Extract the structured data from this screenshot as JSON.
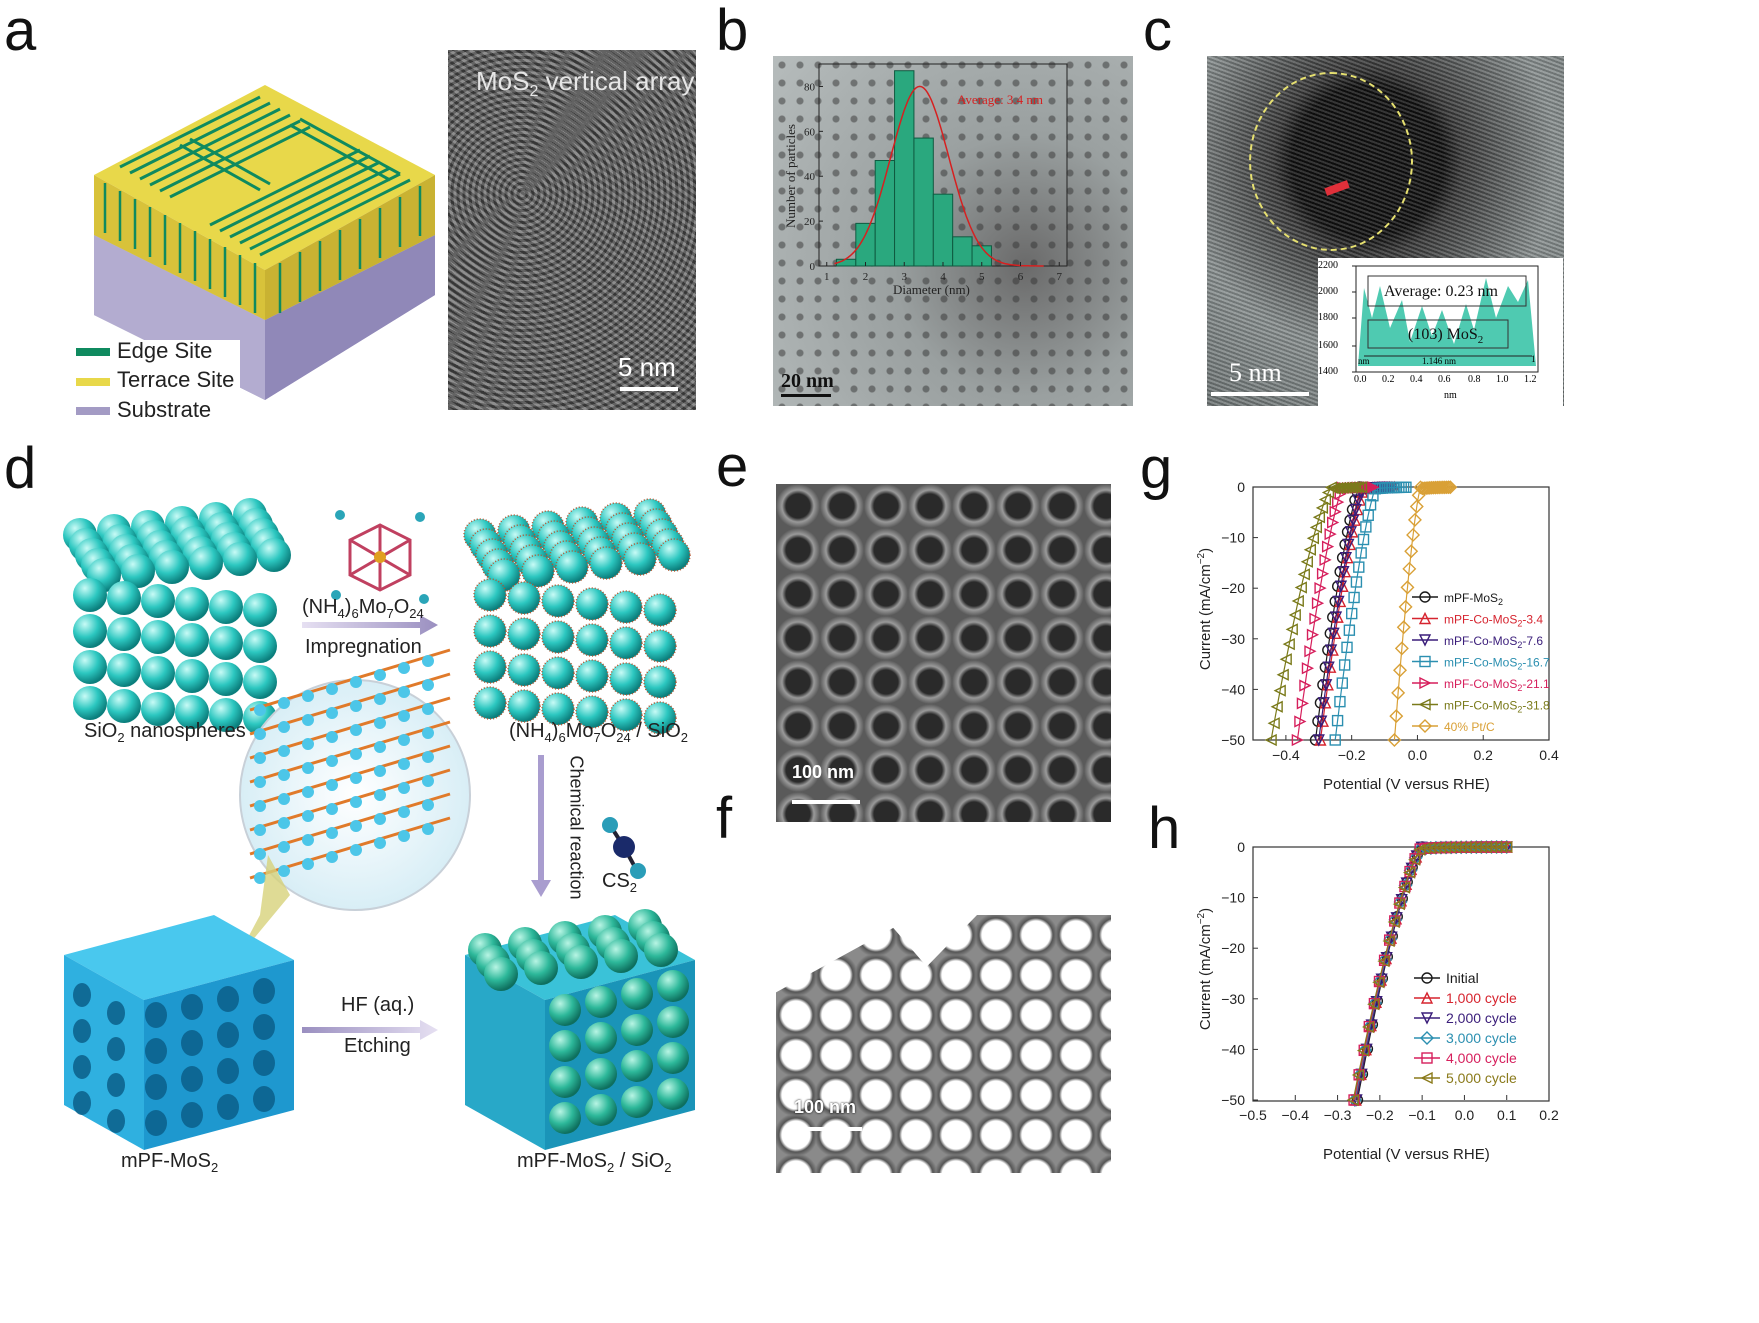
{
  "panels": {
    "a": {
      "label": "a",
      "legend": [
        "Edge Site",
        "Terrace Site",
        "Substrate"
      ],
      "colors": {
        "edge": "#0f8a5f",
        "terrace": "#e8d84a",
        "substrate": "#a39bc4"
      },
      "image_title_main": "MoS",
      "image_title_sub": "2",
      "image_title_rest": " vertical array",
      "scale": "5 nm"
    },
    "b": {
      "label": "b",
      "scale": "20 nm",
      "inset": {
        "ylabel": "Number of particles",
        "xlabel": "Diameter (nm)",
        "annotation": "Average: 3.4 nm",
        "yticks": [
          "0",
          "20",
          "40",
          "60",
          "80"
        ],
        "xticks": [
          "1",
          "2",
          "3",
          "4",
          "5",
          "6",
          "7"
        ]
      }
    },
    "c": {
      "label": "c",
      "scale": "5 nm",
      "inset": {
        "average": "Average:  0.23 nm",
        "plane_main": "(103) MoS",
        "plane_sub": "2",
        "measure": "1.146 nm",
        "nm_left": "nm",
        "nm_right": "1",
        "xlabel": "nm",
        "yticks": [
          "2200",
          "2000",
          "1800",
          "1600",
          "1400"
        ],
        "xticks": [
          "0.0",
          "0.2",
          "0.4",
          "0.6",
          "0.8",
          "1.0",
          "1.2"
        ]
      }
    },
    "d": {
      "label": "d",
      "sio2_main": "SiO",
      "sio2_sub": "2",
      "sio2_rest": " nanospheres",
      "precursor_a": "(NH",
      "precursor_b": "4",
      "precursor_c": ")",
      "precursor_d": "6",
      "precursor_e": "Mo",
      "precursor_f": "7",
      "precursor_g": "O",
      "precursor_h": "24",
      "impregnation": "Impregnation",
      "composite_suffix": " / SiO",
      "composite_sub": "2",
      "chemical_reaction": "Chemical reaction",
      "cs2_main": "CS",
      "cs2_sub": "2",
      "hf": "HF (aq.)",
      "etching": "Etching",
      "mpf_main": "mPF-MoS",
      "mpf_sub": "2",
      "mpf_sio2_main": "mPF-MoS",
      "mpf_sio2_sub": "2",
      "mpf_sio2_rest": " / SiO",
      "mpf_sio2_sub2": "2"
    },
    "e": {
      "label": "e",
      "scale": "100 nm"
    },
    "f": {
      "label": "f",
      "scale": "100 nm"
    },
    "g": {
      "label": "g"
    },
    "h": {
      "label": "h"
    }
  },
  "chart_data": [
    {
      "type": "bar",
      "panel": "b-inset",
      "x": [
        1.5,
        2.0,
        2.5,
        3.0,
        3.5,
        4.0,
        4.5,
        5.0,
        5.5
      ],
      "values": [
        3,
        19,
        47,
        87,
        57,
        32,
        13,
        9,
        0
      ],
      "fit": "gaussian",
      "ylabel": "Number of particles",
      "xlabel": "Diameter (nm)",
      "annotation": "Average: 3.4 nm",
      "ylim": [
        0,
        90
      ],
      "xlim": [
        0.8,
        7.2
      ]
    },
    {
      "type": "line",
      "panel": "g",
      "xlabel": "Potential (V versus RHE)",
      "ylabel_main": "Current (mA/cm",
      "ylabel_sup": "−2",
      "ylabel_end": ")",
      "xlim": [
        -0.5,
        0.4
      ],
      "ylim": [
        -50,
        0
      ],
      "xticks": [
        -0.4,
        -0.2,
        0.0,
        0.2,
        0.4
      ],
      "yticks": [
        0,
        -10,
        -20,
        -30,
        -40,
        -50
      ],
      "legend_position": "right",
      "series": [
        {
          "name": "mPF-MoS",
          "sub": "2",
          "suffix": "",
          "color": "#1a1a1a",
          "marker": "circle",
          "onset": -0.175,
          "x50": -0.31
        },
        {
          "name": "mPF-Co-MoS",
          "sub": "2",
          "suffix": "-3.4",
          "color": "#d6242f",
          "marker": "triangle-up",
          "onset": -0.16,
          "x50": -0.295
        },
        {
          "name": "mPF-Co-MoS",
          "sub": "2",
          "suffix": "-7.6",
          "color": "#3a1d7a",
          "marker": "triangle-down",
          "onset": -0.165,
          "x50": -0.3
        },
        {
          "name": "mPF-Co-MoS",
          "sub": "2",
          "suffix": "-16.7",
          "color": "#2b8fb0",
          "marker": "square",
          "onset": -0.125,
          "x50": -0.25
        },
        {
          "name": "mPF-Co-MoS",
          "sub": "2",
          "suffix": "-21.1",
          "color": "#d61f5c",
          "marker": "triangle-right",
          "onset": -0.225,
          "x50": -0.365
        },
        {
          "name": "mPF-Co-MoS",
          "sub": "2",
          "suffix": "-31.8",
          "color": "#7a7a1a",
          "marker": "triangle-left",
          "onset": -0.26,
          "x50": -0.445
        },
        {
          "name": "40% Pt/C",
          "sub": "",
          "suffix": "",
          "color": "#d9a036",
          "marker": "diamond",
          "onset": 0.01,
          "x50": -0.07
        }
      ]
    },
    {
      "type": "line",
      "panel": "h",
      "xlabel": "Potential (V versus RHE)",
      "ylabel_main": "Current (mA/cm",
      "ylabel_sup": "−2",
      "ylabel_end": ")",
      "xlim": [
        -0.5,
        0.2
      ],
      "ylim": [
        -50,
        0
      ],
      "xticks": [
        -0.5,
        -0.4,
        -0.3,
        -0.2,
        -0.1,
        0.0,
        0.1,
        0.2
      ],
      "yticks": [
        0,
        -10,
        -20,
        -30,
        -40,
        -50
      ],
      "legend_position": "right",
      "series": [
        {
          "name": "Initial",
          "color": "#1a1a1a",
          "marker": "circle",
          "onset": -0.1,
          "x50": -0.253
        },
        {
          "name": "1,000 cycle",
          "color": "#d6242f",
          "marker": "triangle-up",
          "onset": -0.1,
          "x50": -0.257
        },
        {
          "name": "2,000 cycle",
          "color": "#3a1d7a",
          "marker": "triangle-down",
          "onset": -0.1,
          "x50": -0.255
        },
        {
          "name": "3,000 cycle",
          "color": "#2b8fb0",
          "marker": "diamond",
          "onset": -0.1,
          "x50": -0.259
        },
        {
          "name": "4,000 cycle",
          "color": "#d61f5c",
          "marker": "square",
          "onset": -0.1,
          "x50": -0.261
        },
        {
          "name": "5,000 cycle",
          "color": "#8a7a1a",
          "marker": "triangle-left",
          "onset": -0.1,
          "x50": -0.263
        }
      ]
    }
  ]
}
